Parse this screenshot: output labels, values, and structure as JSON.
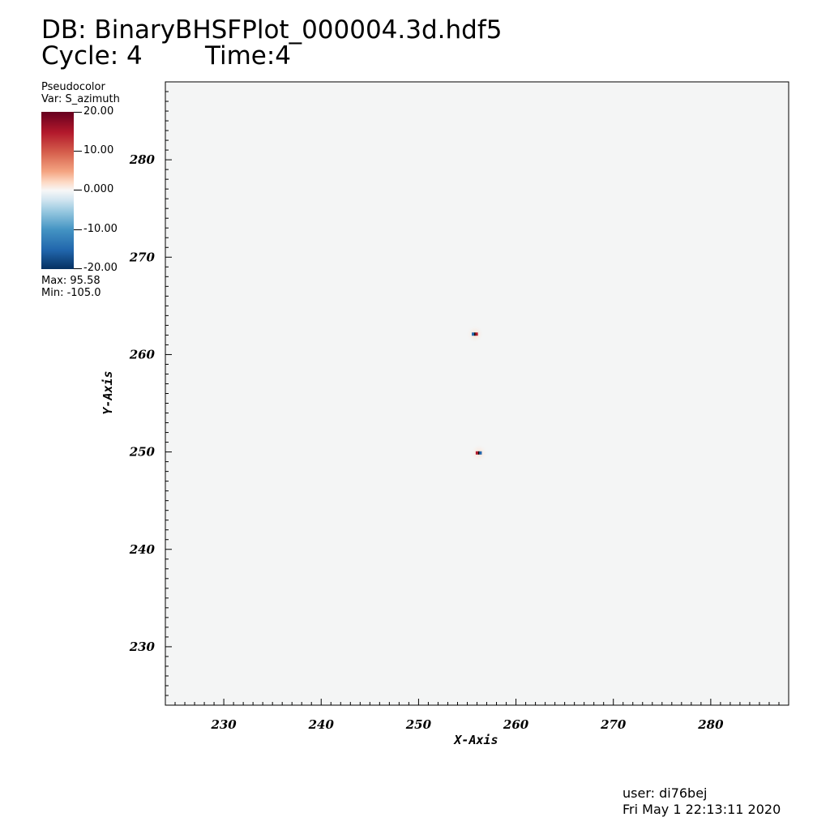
{
  "header": {
    "db_line": "DB: BinaryBHSFPlot_000004.3d.hdf5",
    "cycle_line": "Cycle: 4",
    "time_line": "Time:4"
  },
  "legend": {
    "plot_type": "Pseudocolor",
    "variable": "Var: S_azimuth",
    "colorbar_labels": [
      "20.00",
      "10.00",
      "0.000",
      "-10.00",
      "-20.00"
    ],
    "max_text": "Max:  95.58",
    "min_text": "Min: -105.0",
    "colormap": [
      "#67001f",
      "#b2182b",
      "#d6604d",
      "#f4a582",
      "#fddbc7",
      "#f7f7f7",
      "#d1e5f0",
      "#92c5de",
      "#4393c3",
      "#2166ac",
      "#053061"
    ]
  },
  "footer": {
    "user": "user: di76bej",
    "date": "Fri May  1 22:13:11 2020"
  },
  "chart_data": {
    "type": "heatmap",
    "xlabel": "X-Axis",
    "ylabel": "Y-Axis",
    "xlim": [
      224,
      288
    ],
    "ylim": [
      224,
      288
    ],
    "x_ticks": [
      230,
      240,
      250,
      260,
      270,
      280
    ],
    "y_ticks": [
      230,
      240,
      250,
      260,
      270,
      280
    ],
    "background_color": "#f4f5f5",
    "features": [
      {
        "x": 255.8,
        "y": 262.1,
        "left_color": "#2166ac",
        "right_color": "#b2182b"
      },
      {
        "x": 256.2,
        "y": 249.9,
        "left_color": "#b2182b",
        "right_color": "#2166ac"
      }
    ]
  }
}
